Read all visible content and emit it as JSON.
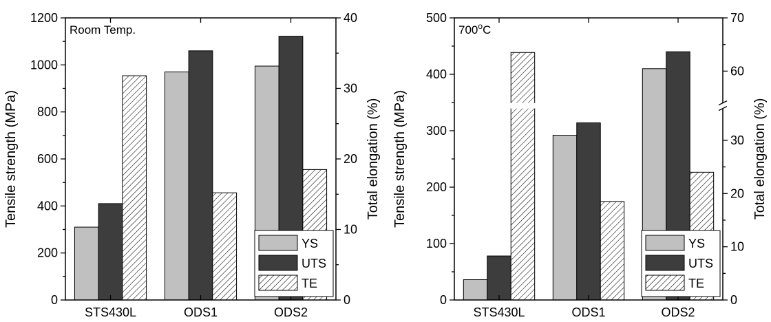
{
  "colors": {
    "YS": "#c0c0c0",
    "UTS": "#3d3d3d",
    "TE": "hatch"
  },
  "chart_data": [
    {
      "type": "bar",
      "annotation": "Room Temp.",
      "categories": [
        "STS430L",
        "ODS1",
        "ODS2"
      ],
      "ylabel": "Tensile strength (MPa)",
      "y2label": "Total elongation (%)",
      "ylim": [
        0,
        1200
      ],
      "yticks": [
        0,
        200,
        400,
        600,
        800,
        1000,
        1200
      ],
      "y2lim": [
        0,
        40
      ],
      "y2ticks": [
        0,
        10,
        20,
        30,
        40
      ],
      "legend_position": "bottom-right",
      "series": [
        {
          "name": "YS",
          "axis": "left",
          "values": [
            310,
            970,
            995
          ]
        },
        {
          "name": "UTS",
          "axis": "left",
          "values": [
            410,
            1060,
            1122
          ]
        },
        {
          "name": "TE",
          "axis": "right",
          "values": [
            31.8,
            15.2,
            18.5
          ]
        }
      ]
    },
    {
      "type": "bar",
      "annotation": "700°C",
      "categories": [
        "STS430L",
        "ODS1",
        "ODS2"
      ],
      "ylabel": "Tensile strength (MPa)",
      "y2label": "Total elongation (%)",
      "ylim": [
        0,
        500
      ],
      "yticks": [
        0,
        100,
        200,
        300,
        400,
        500
      ],
      "y2_broken_axis": true,
      "y2_segments": [
        [
          0,
          35
        ],
        [
          55,
          70
        ]
      ],
      "y2ticks": [
        0,
        10,
        20,
        30,
        60,
        70
      ],
      "legend_position": "bottom-right",
      "series": [
        {
          "name": "YS",
          "axis": "left",
          "values": [
            36,
            292,
            410
          ]
        },
        {
          "name": "UTS",
          "axis": "left",
          "values": [
            78,
            314,
            440
          ]
        },
        {
          "name": "TE",
          "axis": "right",
          "values": [
            63.5,
            18.5,
            24
          ]
        }
      ]
    }
  ]
}
